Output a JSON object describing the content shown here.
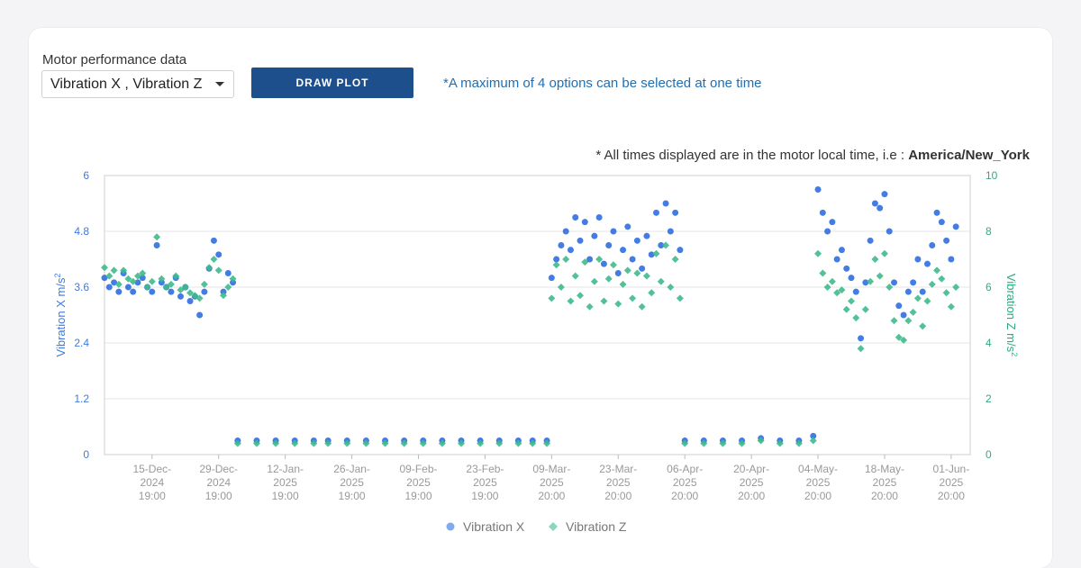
{
  "controls": {
    "dropdown_label": "Motor performance data",
    "dropdown_value": "Vibration X , Vibration Z",
    "draw_button": "DRAW PLOT",
    "max_note": "*A maximum of 4 options can be selected at one time",
    "timezone_prefix": "* All times displayed are in the motor local time, i.e : ",
    "timezone_value": "America/New_York"
  },
  "colors": {
    "vibration_x": "#2f6fe0",
    "vibration_z": "#3fba8c",
    "button_bg": "#1d4f8c",
    "note_text": "#1e6fb3"
  },
  "chart_data": {
    "type": "scatter",
    "title": "",
    "x_axis": {
      "type": "date",
      "range": [
        "2024-12-05",
        "2025-06-05"
      ],
      "ticks": [
        {
          "date": "2024-12-15",
          "label": [
            "15-Dec-",
            "2024",
            "19:00"
          ]
        },
        {
          "date": "2024-12-29",
          "label": [
            "29-Dec-",
            "2024",
            "19:00"
          ]
        },
        {
          "date": "2025-01-12",
          "label": [
            "12-Jan-",
            "2025",
            "19:00"
          ]
        },
        {
          "date": "2025-01-26",
          "label": [
            "26-Jan-",
            "2025",
            "19:00"
          ]
        },
        {
          "date": "2025-02-09",
          "label": [
            "09-Feb-",
            "2025",
            "19:00"
          ]
        },
        {
          "date": "2025-02-23",
          "label": [
            "23-Feb-",
            "2025",
            "19:00"
          ]
        },
        {
          "date": "2025-03-09",
          "label": [
            "09-Mar-",
            "2025",
            "20:00"
          ]
        },
        {
          "date": "2025-03-23",
          "label": [
            "23-Mar-",
            "2025",
            "20:00"
          ]
        },
        {
          "date": "2025-04-06",
          "label": [
            "06-Apr-",
            "2025",
            "20:00"
          ]
        },
        {
          "date": "2025-04-20",
          "label": [
            "20-Apr-",
            "2025",
            "20:00"
          ]
        },
        {
          "date": "2025-05-04",
          "label": [
            "04-May-",
            "2025",
            "20:00"
          ]
        },
        {
          "date": "2025-05-18",
          "label": [
            "18-May-",
            "2025",
            "20:00"
          ]
        },
        {
          "date": "2025-06-01",
          "label": [
            "01-Jun-",
            "2025",
            "20:00"
          ]
        }
      ]
    },
    "y_left": {
      "label": "Vibration X m/s",
      "label_sup": "2",
      "range": [
        0,
        6
      ],
      "ticks": [
        "0",
        "1.2",
        "2.4",
        "3.6",
        "4.8",
        "6"
      ]
    },
    "y_right": {
      "label": "Vibration Z m/s",
      "label_sup": "2",
      "range": [
        0,
        10
      ],
      "ticks": [
        "0",
        "2",
        "4",
        "6",
        "8",
        "10"
      ]
    },
    "grid": true,
    "legend": {
      "placement": "bottom-center"
    },
    "series": [
      {
        "name": "Vibration X",
        "axis": "left",
        "marker": "circle",
        "color": "#2f6fe0",
        "points": [
          [
            "2024-12-05",
            3.8
          ],
          [
            "2024-12-06",
            3.6
          ],
          [
            "2024-12-07",
            3.7
          ],
          [
            "2024-12-08",
            3.5
          ],
          [
            "2024-12-09",
            3.9
          ],
          [
            "2024-12-10",
            3.6
          ],
          [
            "2024-12-11",
            3.5
          ],
          [
            "2024-12-12",
            3.7
          ],
          [
            "2024-12-13",
            3.8
          ],
          [
            "2024-12-14",
            3.6
          ],
          [
            "2024-12-15",
            3.5
          ],
          [
            "2024-12-16",
            4.5
          ],
          [
            "2024-12-17",
            3.7
          ],
          [
            "2024-12-18",
            3.6
          ],
          [
            "2024-12-19",
            3.5
          ],
          [
            "2024-12-20",
            3.8
          ],
          [
            "2024-12-21",
            3.4
          ],
          [
            "2024-12-22",
            3.6
          ],
          [
            "2024-12-23",
            3.3
          ],
          [
            "2024-12-24",
            3.4
          ],
          [
            "2024-12-25",
            3.0
          ],
          [
            "2024-12-26",
            3.5
          ],
          [
            "2024-12-27",
            4.0
          ],
          [
            "2024-12-28",
            4.6
          ],
          [
            "2024-12-29",
            4.3
          ],
          [
            "2024-12-30",
            3.5
          ],
          [
            "2024-12-31",
            3.9
          ],
          [
            "2025-01-01",
            3.7
          ],
          [
            "2025-01-02",
            0.3
          ],
          [
            "2025-01-06",
            0.3
          ],
          [
            "2025-01-10",
            0.3
          ],
          [
            "2025-01-14",
            0.3
          ],
          [
            "2025-01-18",
            0.3
          ],
          [
            "2025-01-21",
            0.3
          ],
          [
            "2025-01-25",
            0.3
          ],
          [
            "2025-01-29",
            0.3
          ],
          [
            "2025-02-02",
            0.3
          ],
          [
            "2025-02-06",
            0.3
          ],
          [
            "2025-02-10",
            0.3
          ],
          [
            "2025-02-14",
            0.3
          ],
          [
            "2025-02-18",
            0.3
          ],
          [
            "2025-02-22",
            0.3
          ],
          [
            "2025-02-26",
            0.3
          ],
          [
            "2025-03-02",
            0.3
          ],
          [
            "2025-03-05",
            0.3
          ],
          [
            "2025-03-08",
            0.3
          ],
          [
            "2025-03-09",
            3.8
          ],
          [
            "2025-03-10",
            4.2
          ],
          [
            "2025-03-11",
            4.5
          ],
          [
            "2025-03-12",
            4.8
          ],
          [
            "2025-03-13",
            4.4
          ],
          [
            "2025-03-14",
            5.1
          ],
          [
            "2025-03-15",
            4.6
          ],
          [
            "2025-03-16",
            5.0
          ],
          [
            "2025-03-17",
            4.2
          ],
          [
            "2025-03-18",
            4.7
          ],
          [
            "2025-03-19",
            5.1
          ],
          [
            "2025-03-20",
            4.1
          ],
          [
            "2025-03-21",
            4.5
          ],
          [
            "2025-03-22",
            4.8
          ],
          [
            "2025-03-23",
            3.9
          ],
          [
            "2025-03-24",
            4.4
          ],
          [
            "2025-03-25",
            4.9
          ],
          [
            "2025-03-26",
            4.2
          ],
          [
            "2025-03-27",
            4.6
          ],
          [
            "2025-03-28",
            4.0
          ],
          [
            "2025-03-29",
            4.7
          ],
          [
            "2025-03-30",
            4.3
          ],
          [
            "2025-03-31",
            5.2
          ],
          [
            "2025-04-01",
            4.5
          ],
          [
            "2025-04-02",
            5.4
          ],
          [
            "2025-04-03",
            4.8
          ],
          [
            "2025-04-04",
            5.2
          ],
          [
            "2025-04-05",
            4.4
          ],
          [
            "2025-04-06",
            0.3
          ],
          [
            "2025-04-10",
            0.3
          ],
          [
            "2025-04-14",
            0.3
          ],
          [
            "2025-04-18",
            0.3
          ],
          [
            "2025-04-22",
            0.35
          ],
          [
            "2025-04-26",
            0.3
          ],
          [
            "2025-04-30",
            0.3
          ],
          [
            "2025-05-03",
            0.4
          ],
          [
            "2025-05-04",
            5.7
          ],
          [
            "2025-05-05",
            5.2
          ],
          [
            "2025-05-06",
            4.8
          ],
          [
            "2025-05-07",
            5.0
          ],
          [
            "2025-05-08",
            4.2
          ],
          [
            "2025-05-09",
            4.4
          ],
          [
            "2025-05-10",
            4.0
          ],
          [
            "2025-05-11",
            3.8
          ],
          [
            "2025-05-12",
            3.5
          ],
          [
            "2025-05-13",
            2.5
          ],
          [
            "2025-05-14",
            3.7
          ],
          [
            "2025-05-15",
            4.6
          ],
          [
            "2025-05-16",
            5.4
          ],
          [
            "2025-05-17",
            5.3
          ],
          [
            "2025-05-18",
            5.6
          ],
          [
            "2025-05-19",
            4.8
          ],
          [
            "2025-05-20",
            3.7
          ],
          [
            "2025-05-21",
            3.2
          ],
          [
            "2025-05-22",
            3.0
          ],
          [
            "2025-05-23",
            3.5
          ],
          [
            "2025-05-24",
            3.7
          ],
          [
            "2025-05-25",
            4.2
          ],
          [
            "2025-05-26",
            3.5
          ],
          [
            "2025-05-27",
            4.1
          ],
          [
            "2025-05-28",
            4.5
          ],
          [
            "2025-05-29",
            5.2
          ],
          [
            "2025-05-30",
            5.0
          ],
          [
            "2025-05-31",
            4.6
          ],
          [
            "2025-06-01",
            4.2
          ],
          [
            "2025-06-02",
            4.9
          ]
        ]
      },
      {
        "name": "Vibration Z",
        "axis": "right",
        "marker": "diamond",
        "color": "#3fba8c",
        "points": [
          [
            "2024-12-05",
            6.7
          ],
          [
            "2024-12-06",
            6.4
          ],
          [
            "2024-12-07",
            6.6
          ],
          [
            "2024-12-08",
            6.1
          ],
          [
            "2024-12-09",
            6.6
          ],
          [
            "2024-12-10",
            6.3
          ],
          [
            "2024-12-11",
            6.2
          ],
          [
            "2024-12-12",
            6.4
          ],
          [
            "2024-12-13",
            6.5
          ],
          [
            "2024-12-14",
            6.0
          ],
          [
            "2024-12-15",
            6.2
          ],
          [
            "2024-12-16",
            7.8
          ],
          [
            "2024-12-17",
            6.3
          ],
          [
            "2024-12-18",
            6.0
          ],
          [
            "2024-12-19",
            6.1
          ],
          [
            "2024-12-20",
            6.4
          ],
          [
            "2024-12-21",
            5.9
          ],
          [
            "2024-12-22",
            6.0
          ],
          [
            "2024-12-23",
            5.8
          ],
          [
            "2024-12-24",
            5.7
          ],
          [
            "2024-12-25",
            5.6
          ],
          [
            "2024-12-26",
            6.1
          ],
          [
            "2024-12-27",
            6.7
          ],
          [
            "2024-12-28",
            7.0
          ],
          [
            "2024-12-29",
            6.6
          ],
          [
            "2024-12-30",
            5.7
          ],
          [
            "2024-12-31",
            6.0
          ],
          [
            "2025-01-01",
            6.3
          ],
          [
            "2025-01-02",
            0.4
          ],
          [
            "2025-01-06",
            0.4
          ],
          [
            "2025-01-10",
            0.4
          ],
          [
            "2025-01-14",
            0.4
          ],
          [
            "2025-01-18",
            0.4
          ],
          [
            "2025-01-21",
            0.4
          ],
          [
            "2025-01-25",
            0.4
          ],
          [
            "2025-01-29",
            0.4
          ],
          [
            "2025-02-02",
            0.4
          ],
          [
            "2025-02-06",
            0.4
          ],
          [
            "2025-02-10",
            0.4
          ],
          [
            "2025-02-14",
            0.4
          ],
          [
            "2025-02-18",
            0.4
          ],
          [
            "2025-02-22",
            0.4
          ],
          [
            "2025-02-26",
            0.4
          ],
          [
            "2025-03-02",
            0.4
          ],
          [
            "2025-03-05",
            0.4
          ],
          [
            "2025-03-08",
            0.4
          ],
          [
            "2025-03-09",
            5.6
          ],
          [
            "2025-03-10",
            6.8
          ],
          [
            "2025-03-11",
            6.0
          ],
          [
            "2025-03-12",
            7.0
          ],
          [
            "2025-03-13",
            5.5
          ],
          [
            "2025-03-14",
            6.4
          ],
          [
            "2025-03-15",
            5.7
          ],
          [
            "2025-03-16",
            6.9
          ],
          [
            "2025-03-17",
            5.3
          ],
          [
            "2025-03-18",
            6.2
          ],
          [
            "2025-03-19",
            7.0
          ],
          [
            "2025-03-20",
            5.5
          ],
          [
            "2025-03-21",
            6.3
          ],
          [
            "2025-03-22",
            6.8
          ],
          [
            "2025-03-23",
            5.4
          ],
          [
            "2025-03-24",
            6.1
          ],
          [
            "2025-03-25",
            6.6
          ],
          [
            "2025-03-26",
            5.6
          ],
          [
            "2025-03-27",
            6.5
          ],
          [
            "2025-03-28",
            5.3
          ],
          [
            "2025-03-29",
            6.4
          ],
          [
            "2025-03-30",
            5.8
          ],
          [
            "2025-03-31",
            7.2
          ],
          [
            "2025-04-01",
            6.2
          ],
          [
            "2025-04-02",
            7.5
          ],
          [
            "2025-04-03",
            6.0
          ],
          [
            "2025-04-04",
            7.0
          ],
          [
            "2025-04-05",
            5.6
          ],
          [
            "2025-04-06",
            0.4
          ],
          [
            "2025-04-10",
            0.4
          ],
          [
            "2025-04-14",
            0.4
          ],
          [
            "2025-04-18",
            0.4
          ],
          [
            "2025-04-22",
            0.5
          ],
          [
            "2025-04-26",
            0.4
          ],
          [
            "2025-04-30",
            0.4
          ],
          [
            "2025-05-03",
            0.5
          ],
          [
            "2025-05-04",
            7.2
          ],
          [
            "2025-05-05",
            6.5
          ],
          [
            "2025-05-06",
            6.0
          ],
          [
            "2025-05-07",
            6.2
          ],
          [
            "2025-05-08",
            5.8
          ],
          [
            "2025-05-09",
            5.9
          ],
          [
            "2025-05-10",
            5.2
          ],
          [
            "2025-05-11",
            5.5
          ],
          [
            "2025-05-12",
            4.9
          ],
          [
            "2025-05-13",
            3.8
          ],
          [
            "2025-05-14",
            5.2
          ],
          [
            "2025-05-15",
            6.2
          ],
          [
            "2025-05-16",
            7.0
          ],
          [
            "2025-05-17",
            6.4
          ],
          [
            "2025-05-18",
            7.2
          ],
          [
            "2025-05-19",
            6.0
          ],
          [
            "2025-05-20",
            4.8
          ],
          [
            "2025-05-21",
            4.2
          ],
          [
            "2025-05-22",
            4.1
          ],
          [
            "2025-05-23",
            4.8
          ],
          [
            "2025-05-24",
            5.1
          ],
          [
            "2025-05-25",
            5.6
          ],
          [
            "2025-05-26",
            4.6
          ],
          [
            "2025-05-27",
            5.5
          ],
          [
            "2025-05-28",
            6.1
          ],
          [
            "2025-05-29",
            6.6
          ],
          [
            "2025-05-30",
            6.3
          ],
          [
            "2025-05-31",
            5.8
          ],
          [
            "2025-06-01",
            5.3
          ],
          [
            "2025-06-02",
            6.0
          ]
        ]
      }
    ]
  }
}
